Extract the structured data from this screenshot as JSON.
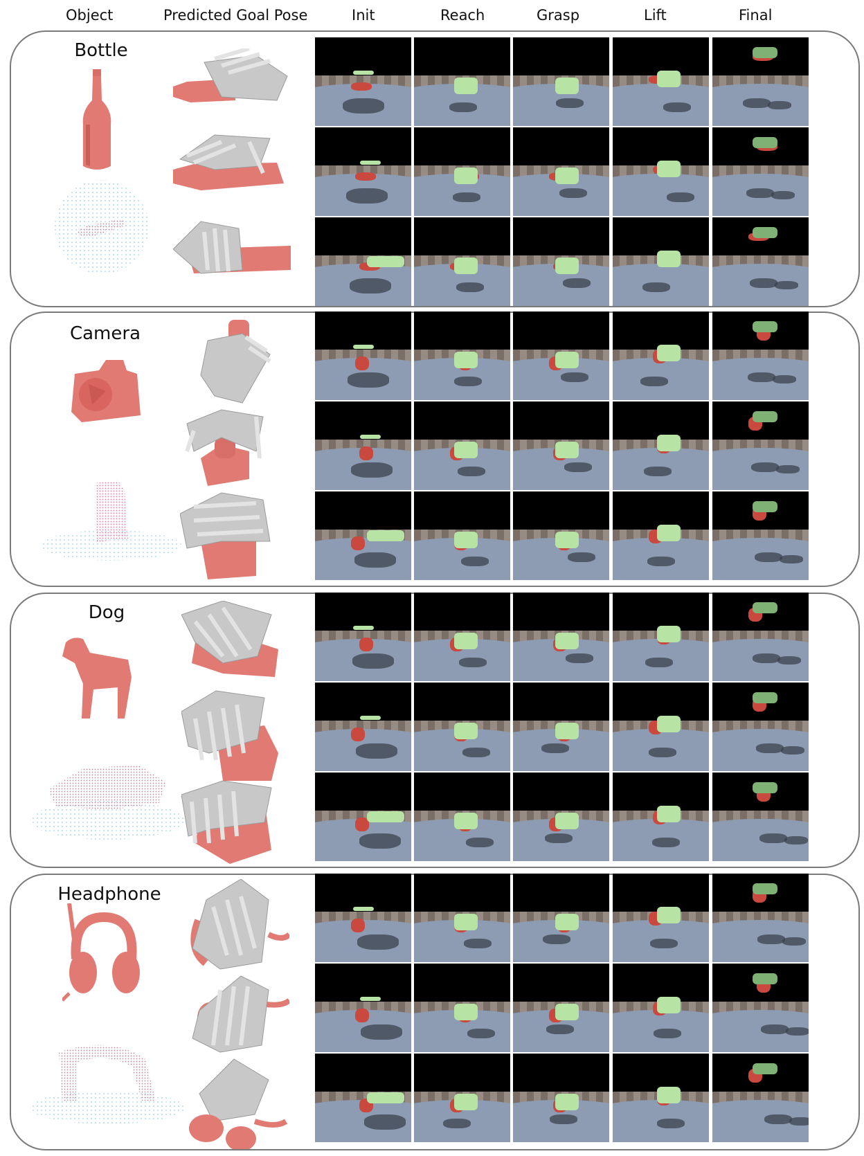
{
  "columns": {
    "object": "Object",
    "predicted_goal_pose": "Predicted Goal Pose",
    "init": "Init",
    "reach": "Reach",
    "grasp": "Grasp",
    "lift": "Lift",
    "final": "Final"
  },
  "groups": [
    {
      "name": "Bottle"
    },
    {
      "name": "Camera"
    },
    {
      "name": "Dog"
    },
    {
      "name": "Headphone"
    }
  ],
  "colors": {
    "object_mesh": "#e07a73",
    "hand_gray": "#c8c8c8",
    "hand_green": "#b7e3a5",
    "ground": "#8d9cb3",
    "point_cloud_object": "#d77b9c",
    "point_cloud_table": "#9dd0e4"
  },
  "icons": {
    "object_mesh": "bottle-mesh-icon",
    "object_point_cloud": "point-cloud-icon",
    "goal_pose_render": "robot-hand-grasp-icon",
    "sim_frame": "simulation-frame-icon"
  }
}
